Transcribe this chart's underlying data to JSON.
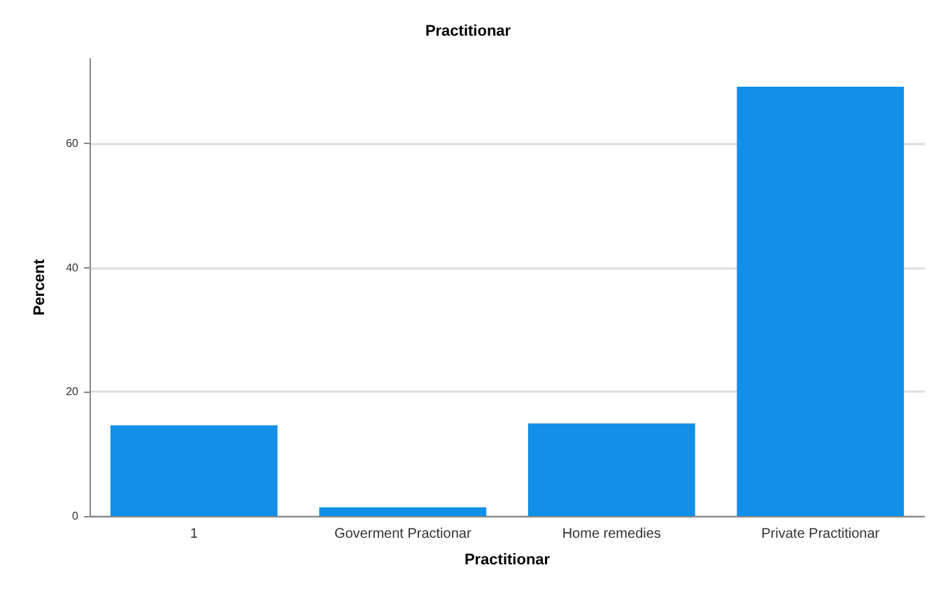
{
  "chart_data": {
    "type": "bar",
    "title": "Practitionar",
    "xlabel": "Practitionar",
    "ylabel": "Percent",
    "categories": [
      "1",
      "Goverment Practionar",
      "Home remedies",
      "Private Practitionar"
    ],
    "values": [
      14.6,
      1.4,
      14.9,
      69.1
    ],
    "color": "#128fe6",
    "ylim": [
      0,
      73.6
    ],
    "yticks": [
      0,
      20,
      40,
      60
    ],
    "grid": "y"
  }
}
